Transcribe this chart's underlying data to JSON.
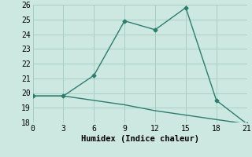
{
  "line1_x": [
    0,
    3,
    6,
    9,
    12,
    15,
    18,
    21
  ],
  "line1_y": [
    19.8,
    19.8,
    21.2,
    24.9,
    24.3,
    25.8,
    19.5,
    17.9
  ],
  "line2_x": [
    0,
    3,
    6,
    9,
    12,
    15,
    18,
    21
  ],
  "line2_y": [
    19.8,
    19.8,
    19.5,
    19.2,
    18.8,
    18.5,
    18.2,
    17.9
  ],
  "line_color": "#2d7d6e",
  "marker": "D",
  "markersize": 2.5,
  "linewidth": 1.0,
  "xlabel": "Humidex (Indice chaleur)",
  "xlim": [
    0,
    21
  ],
  "ylim": [
    18,
    26
  ],
  "xticks": [
    0,
    3,
    6,
    9,
    12,
    15,
    18,
    21
  ],
  "yticks": [
    18,
    19,
    20,
    21,
    22,
    23,
    24,
    25,
    26
  ],
  "bg_color": "#cce8e0",
  "grid_color": "#a8cfc4",
  "xlabel_fontsize": 7.5,
  "tick_fontsize": 7,
  "font_family": "monospace"
}
